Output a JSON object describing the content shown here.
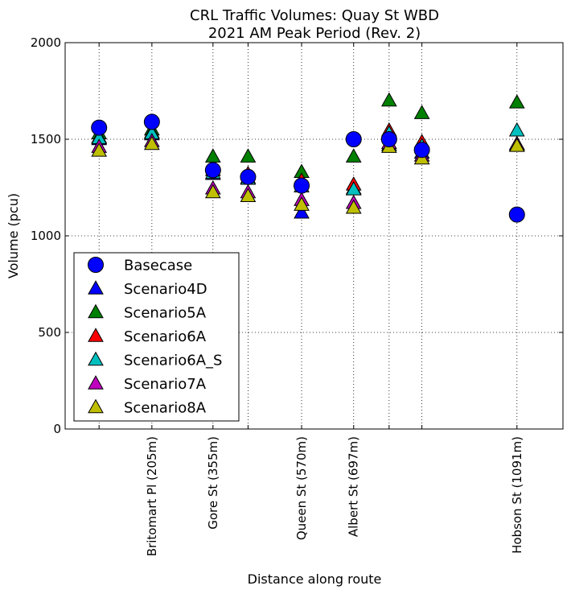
{
  "chart_data": {
    "type": "scatter",
    "title": [
      "CRL Traffic Volumes: Quay St WBD",
      "2021 AM Peak Period (Rev. 2)"
    ],
    "xlabel": "Distance along route",
    "ylabel": "Volume (pcu)",
    "ylim": [
      0,
      2000
    ],
    "yticks": [
      0,
      500,
      1000,
      1500,
      2000
    ],
    "xlim": [
      -100,
      1220
    ],
    "grid": true,
    "legend_position": "lower-left",
    "xticks": [
      {
        "x": -10,
        "label": ""
      },
      {
        "x": 130,
        "label": "Britomart Pl (205m)"
      },
      {
        "x": 292,
        "label": "Gore St (355m)"
      },
      {
        "x": 385,
        "label": ""
      },
      {
        "x": 527,
        "label": "Queen St (570m)"
      },
      {
        "x": 665,
        "label": "Albert St (697m)"
      },
      {
        "x": 759,
        "label": ""
      },
      {
        "x": 846,
        "label": ""
      },
      {
        "x": 1098,
        "label": "Hobson St (1091m)"
      }
    ],
    "x": [
      -10,
      130,
      292,
      385,
      527,
      665,
      759,
      846,
      1098
    ],
    "series": [
      {
        "name": "Basecase",
        "marker": "circle",
        "color": "#0000ff",
        "values": [
          1560,
          1590,
          1340,
          1305,
          1260,
          1500,
          1500,
          1445,
          1110
        ]
      },
      {
        "name": "Scenario4D",
        "marker": "triangle",
        "color": "#0000ff",
        "values": [
          1500,
          1525,
          1320,
          1300,
          1120,
          1245,
          1470,
          1430,
          1470
        ]
      },
      {
        "name": "Scenario5A",
        "marker": "triangle",
        "color": "#008000",
        "values": [
          1530,
          1550,
          1410,
          1410,
          1330,
          1410,
          1700,
          1635,
          1690
        ]
      },
      {
        "name": "Scenario6A",
        "marker": "triangle",
        "color": "#ff0000",
        "values": [
          1510,
          1535,
          1340,
          1320,
          1285,
          1265,
          1545,
          1485,
          1475
        ]
      },
      {
        "name": "Scenario6A_S",
        "marker": "triangle",
        "color": "#00bfbf",
        "values": [
          1505,
          1530,
          1325,
          1295,
          1255,
          1240,
          1530,
          1465,
          1545
        ]
      },
      {
        "name": "Scenario7A",
        "marker": "triangle",
        "color": "#bf00bf",
        "values": [
          1460,
          1490,
          1245,
          1225,
          1185,
          1170,
          1480,
          1415,
          1475
        ]
      },
      {
        "name": "Scenario8A",
        "marker": "triangle",
        "color": "#bfbf00",
        "values": [
          1440,
          1475,
          1225,
          1205,
          1160,
          1145,
          1460,
          1400,
          1465
        ]
      }
    ]
  }
}
